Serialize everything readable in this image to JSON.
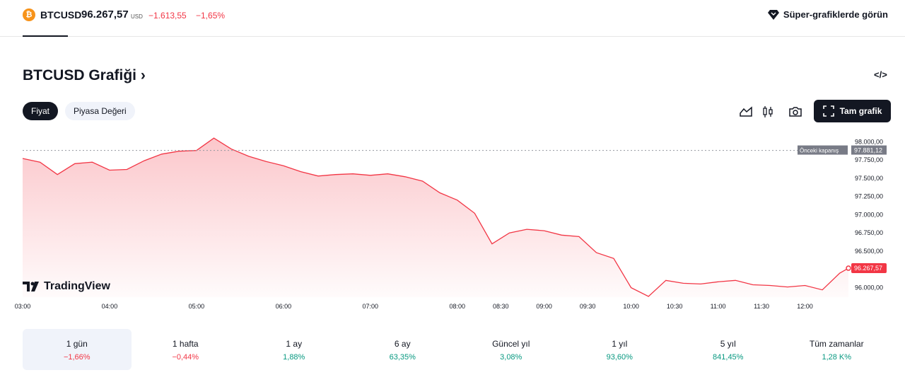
{
  "header": {
    "coin_glyph": "₿",
    "symbol": "BTCUSD",
    "price": "96.267,57",
    "currency": "USD",
    "change": "−1.613,55",
    "change_percent": "−1,65%",
    "super_charts_link": "Süper-grafiklerde görün"
  },
  "chart_section": {
    "title": "BTCUSD Grafiği",
    "title_chevron": "›",
    "embed_icon": "code-icon",
    "tabs": [
      {
        "label": "Fiyat",
        "active": true
      },
      {
        "label": "Piyasa Değeri",
        "active": false
      }
    ],
    "toolbar": {
      "area_icon": "area-chart-icon",
      "candles_icon": "candlestick-icon",
      "snapshot_icon": "camera-icon",
      "full_chart_label": "Tam grafik"
    },
    "branding": "TradingView"
  },
  "chart_data": {
    "type": "area",
    "line_color": "#f23645",
    "x_ticks": [
      "03:00",
      "04:00",
      "05:00",
      "06:00",
      "07:00",
      "08:00",
      "08:30",
      "09:00",
      "09:30",
      "10:00",
      "10:30",
      "11:00",
      "11:30",
      "12:00"
    ],
    "y_ticks": [
      "98.000,00",
      "97.750,00",
      "97.500,00",
      "97.250,00",
      "97.000,00",
      "96.750,00",
      "96.500,00",
      "96.250,00",
      "96.000,00"
    ],
    "ylim": [
      95870,
      98100
    ],
    "previous_close": {
      "label": "Önceki kapanış",
      "value": 97881.12,
      "text": "97.881,12"
    },
    "last_price": {
      "value": 96267.57,
      "text": "96.267,57"
    },
    "x_hours": [
      3.0,
      3.2,
      3.4,
      3.6,
      3.8,
      4.0,
      4.2,
      4.4,
      4.6,
      4.8,
      5.0,
      5.2,
      5.4,
      5.6,
      5.8,
      6.0,
      6.2,
      6.4,
      6.6,
      6.8,
      7.0,
      7.2,
      7.4,
      7.6,
      7.8,
      8.0,
      8.2,
      8.4,
      8.6,
      8.8,
      9.0,
      9.2,
      9.4,
      9.6,
      9.8,
      10.0,
      10.2,
      10.4,
      10.6,
      10.8,
      11.0,
      11.2,
      11.4,
      11.6,
      11.8,
      12.0,
      12.2,
      12.4,
      12.5
    ],
    "values": [
      97770,
      97720,
      97550,
      97700,
      97720,
      97610,
      97620,
      97740,
      97830,
      97870,
      97880,
      98050,
      97900,
      97800,
      97730,
      97670,
      97590,
      97530,
      97550,
      97560,
      97540,
      97560,
      97520,
      97460,
      97300,
      97200,
      97020,
      96600,
      96750,
      96800,
      96780,
      96720,
      96700,
      96480,
      96400,
      96000,
      95880,
      96100,
      96060,
      96050,
      96080,
      96100,
      96040,
      96030,
      96010,
      96030,
      95970,
      96200,
      96267
    ]
  },
  "periods": [
    {
      "label": "1 gün",
      "value": "−1,66%",
      "positive": false,
      "active": true
    },
    {
      "label": "1 hafta",
      "value": "−0,44%",
      "positive": false,
      "active": false
    },
    {
      "label": "1 ay",
      "value": "1,88%",
      "positive": true,
      "active": false
    },
    {
      "label": "6 ay",
      "value": "63,35%",
      "positive": true,
      "active": false
    },
    {
      "label": "Güncel yıl",
      "value": "3,08%",
      "positive": true,
      "active": false
    },
    {
      "label": "1 yıl",
      "value": "93,60%",
      "positive": true,
      "active": false
    },
    {
      "label": "5 yıl",
      "value": "841,45%",
      "positive": true,
      "active": false
    },
    {
      "label": "Tüm zamanlar",
      "value": "1,28 K%",
      "positive": true,
      "active": false
    }
  ]
}
